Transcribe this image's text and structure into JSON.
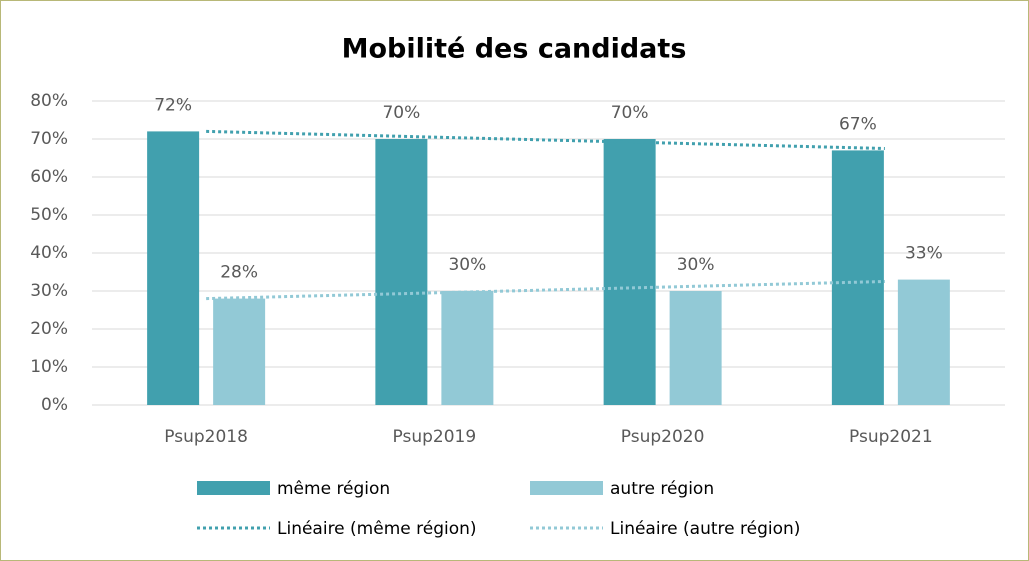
{
  "chart_data": {
    "type": "bar",
    "title": "Mobilité des candidats",
    "categories": [
      "Psup2018",
      "Psup2019",
      "Psup2020",
      "Psup2021"
    ],
    "series": [
      {
        "name": "même région",
        "color": "#41a0ae",
        "values": [
          72,
          70,
          70,
          67
        ],
        "value_labels": [
          "72%",
          "70%",
          "70%",
          "67%"
        ],
        "trend_name": "Linéaire (même région)"
      },
      {
        "name": "autre région",
        "color": "#92c9d6",
        "values": [
          28,
          30,
          30,
          33
        ],
        "value_labels": [
          "28%",
          "30%",
          "30%",
          "33%"
        ],
        "trend_name": "Linéaire (autre région)"
      }
    ],
    "ylim": [
      0,
      80
    ],
    "yticks": [
      {
        "value": 0,
        "label": "0%"
      },
      {
        "value": 10,
        "label": "10%"
      },
      {
        "value": 20,
        "label": "20%"
      },
      {
        "value": 30,
        "label": "30%"
      },
      {
        "value": 40,
        "label": "40%"
      },
      {
        "value": 50,
        "label": "50%"
      },
      {
        "value": 60,
        "label": "60%"
      },
      {
        "value": 70,
        "label": "70%"
      },
      {
        "value": 80,
        "label": "80%"
      }
    ],
    "grid": true,
    "legend": "bottom"
  }
}
